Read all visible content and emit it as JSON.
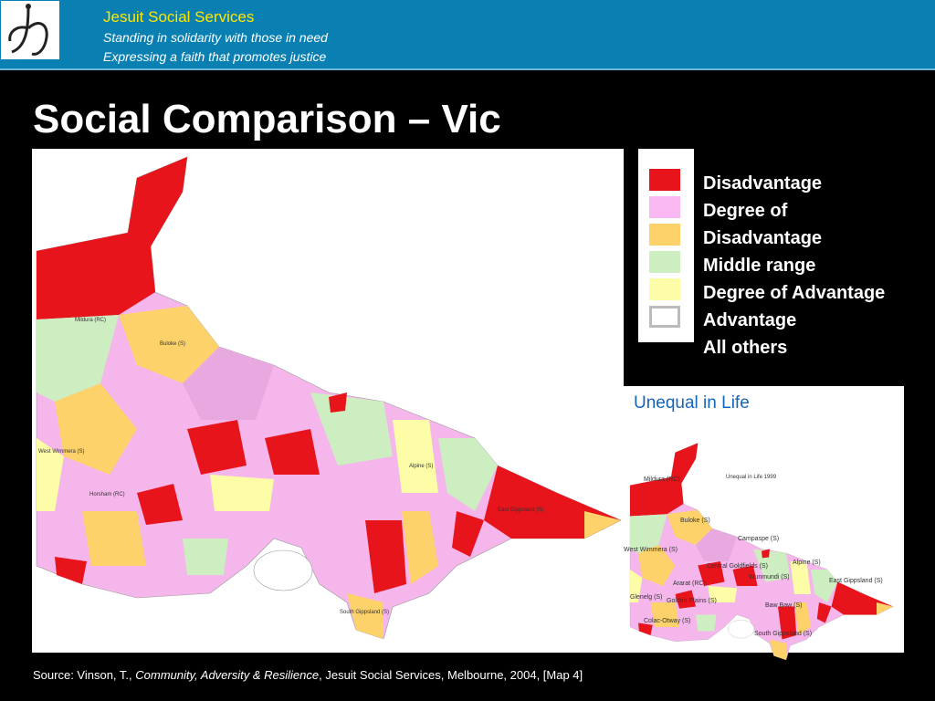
{
  "header": {
    "org": "Jesuit Social Services",
    "taglines": [
      "Standing in solidarity with those in need",
      "Expressing a faith that promotes justice"
    ]
  },
  "title": "Social Comparison – Vic",
  "legend": {
    "items": [
      {
        "label": "Disadvantage",
        "color": "#e8141c"
      },
      {
        "label": "Degree of Disadvantage",
        "color": "#f9b8f2"
      },
      {
        "label": "Middle range",
        "color": "#fdd26a"
      },
      {
        "label": "Degree of Advantage",
        "color": "#cdeec0"
      },
      {
        "label": "Advantage",
        "color": "#fdfda8"
      },
      {
        "label": "All others",
        "color": "#ffffff"
      }
    ]
  },
  "main_map": {
    "labels": [
      "Mildura (RC)",
      "Buloke (S)",
      "West Wimmera (S)",
      "Horsham (RC)",
      "East Gippsland (S)",
      "South Gippsland (S)",
      "Alpine (S)"
    ]
  },
  "inset": {
    "title": "Unequal in Life",
    "map_title": "Unequal in Life 1999",
    "labels": [
      "Mildura (RC)",
      "Buloke (S)",
      "West Wimmera (S)",
      "Campaspe (S)",
      "Central Goldfields (S)",
      "Alpine (S)",
      "Ararat (RC)",
      "Wunmundi (S)",
      "East Gippsland (S)",
      "Glenelg (S)",
      "Golden Plains (S)",
      "Baw Baw (S)",
      "Colac-Otway (S)",
      "South Gippsland (S)"
    ]
  },
  "source": {
    "prefix": "Source:  Vinson, T., ",
    "work": "Community, Adversity & Resilience",
    "suffix": ", Jesuit Social Services, Melbourne, 2004, [Map 4]"
  }
}
